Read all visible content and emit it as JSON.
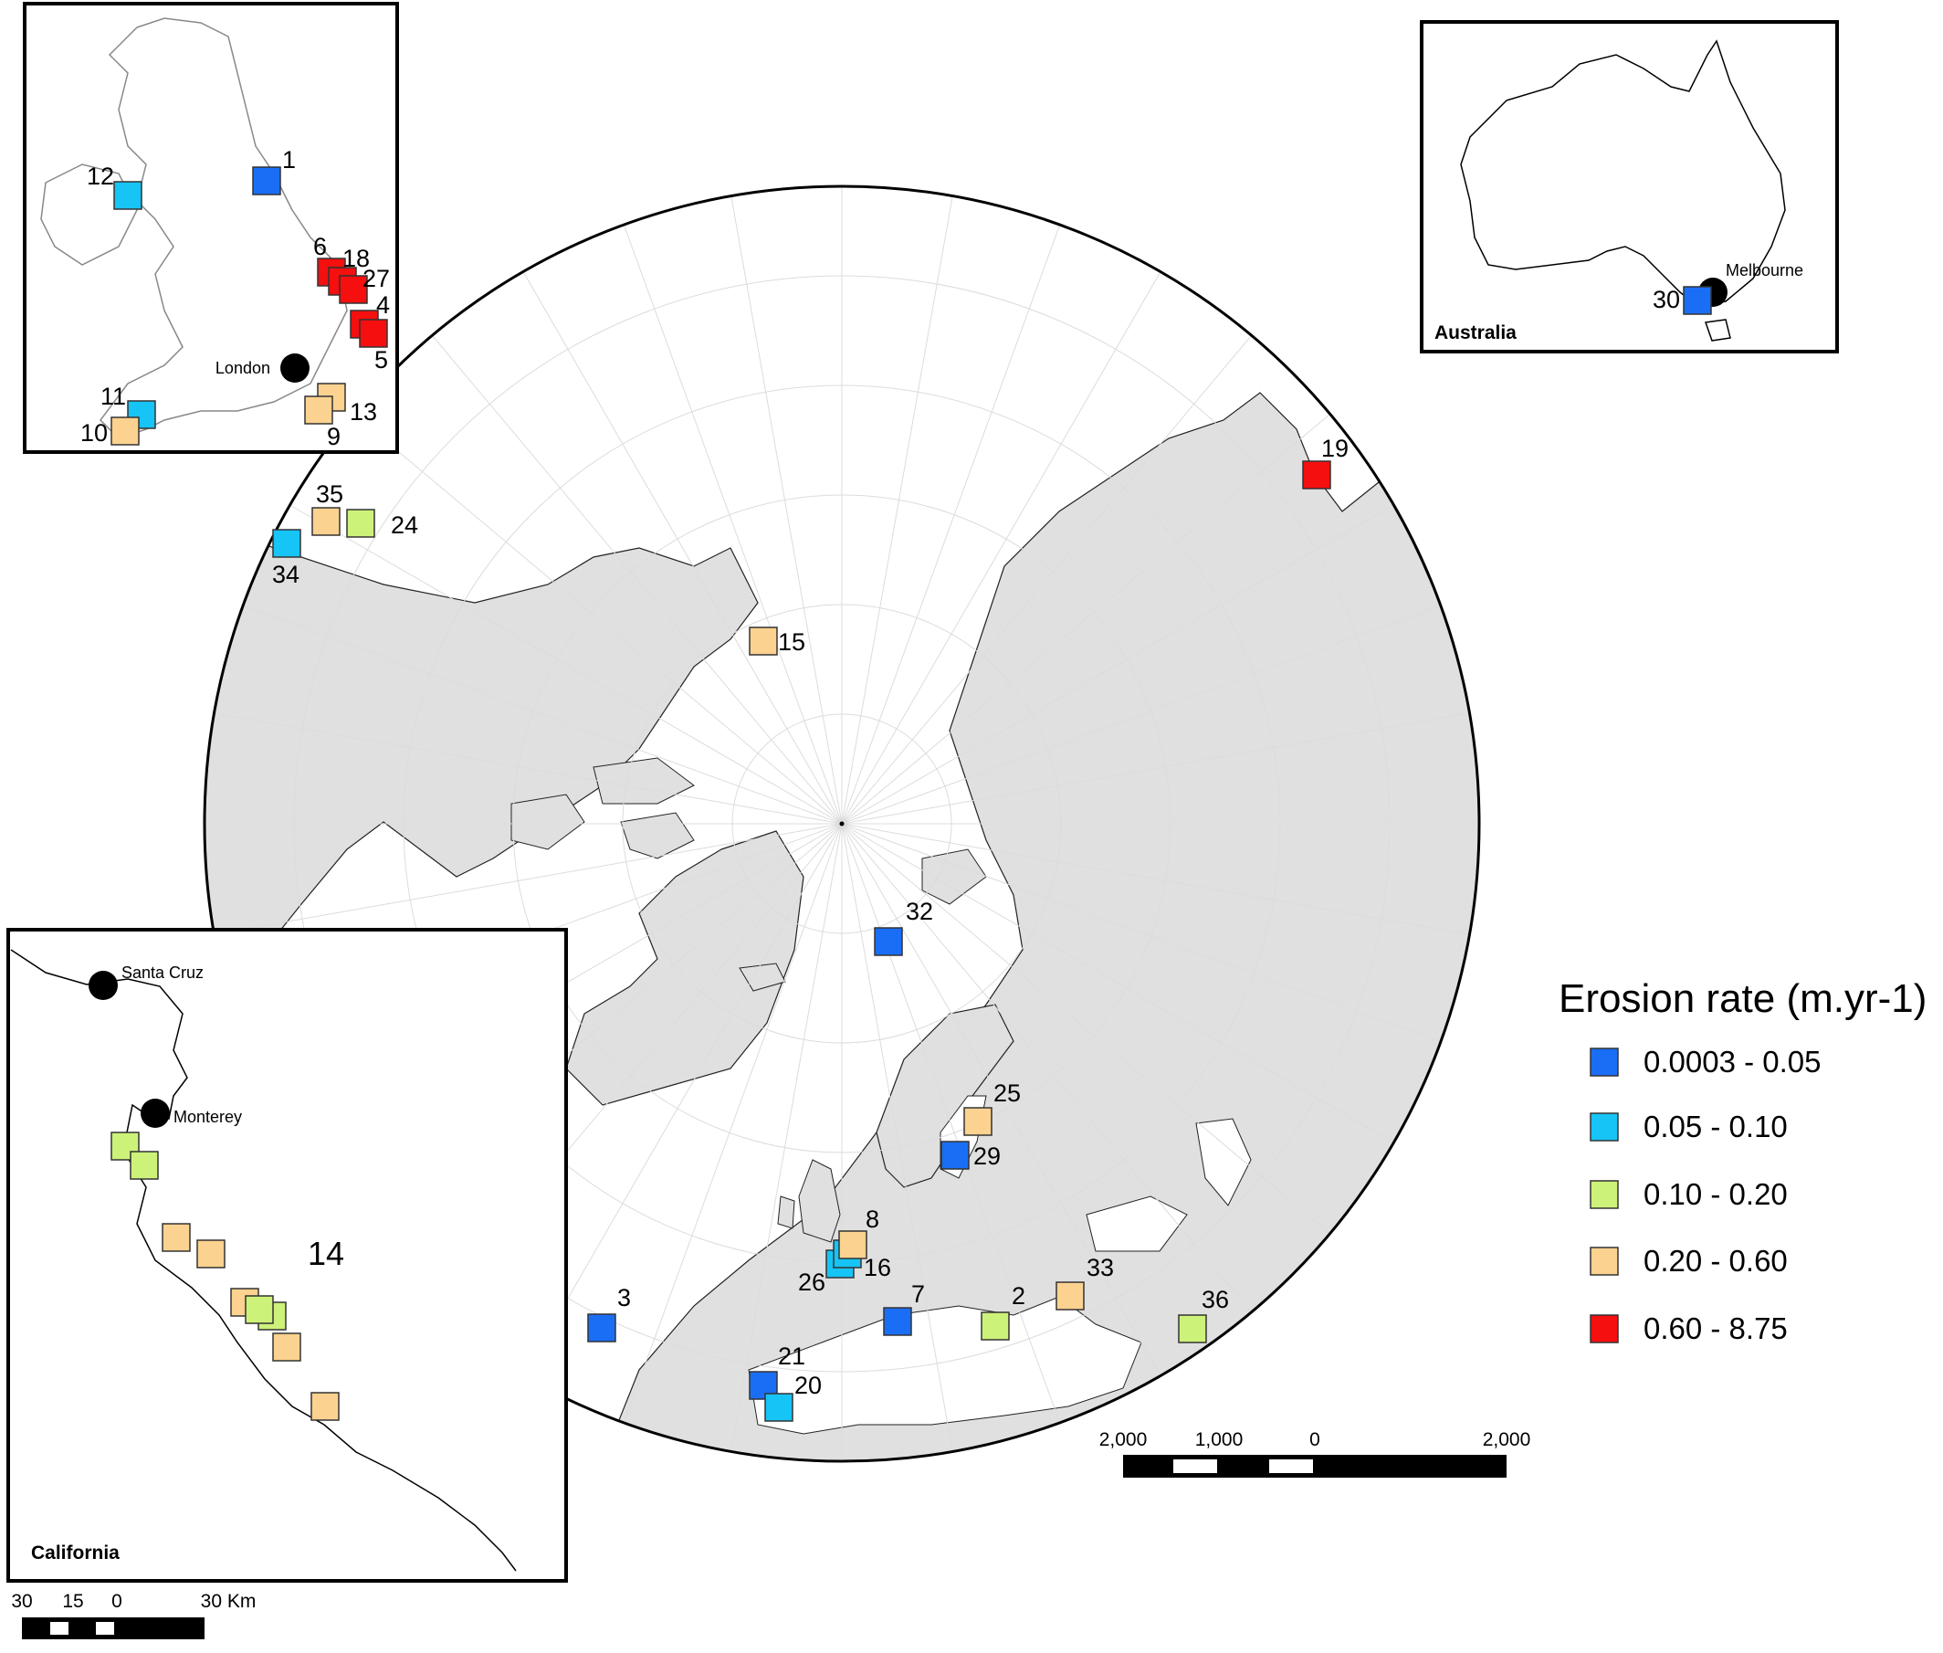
{
  "legend": {
    "title": "Erosion rate (m.yr-1)",
    "classes": [
      {
        "label": "0.0003 - 0.05",
        "color": "#1a6ef5"
      },
      {
        "label": "0.05 - 0.10",
        "color": "#16c4f5"
      },
      {
        "label": "0.10 - 0.20",
        "color": "#cdf27a"
      },
      {
        "label": "0.20 - 0.60",
        "color": "#fbd28f"
      },
      {
        "label": "0.60 - 8.75",
        "color": "#f50f0f"
      }
    ]
  },
  "main_map": {
    "sites": [
      "19",
      "35",
      "24",
      "34",
      "15",
      "32",
      "25",
      "29",
      "8",
      "16",
      "26",
      "3",
      "7",
      "2",
      "33",
      "36",
      "21",
      "20"
    ],
    "scale_labels": [
      "2,000",
      "1,000",
      "0",
      "2,000"
    ]
  },
  "uk_inset": {
    "sites": [
      "1",
      "12",
      "6",
      "18",
      "27",
      "4",
      "5",
      "11",
      "10",
      "13",
      "9"
    ],
    "cities": [
      "London"
    ]
  },
  "australia_inset": {
    "title": "Australia",
    "sites": [
      "30"
    ],
    "cities": [
      "Melbourne"
    ]
  },
  "california_inset": {
    "title": "California",
    "site_label": "14",
    "cities": [
      "Santa Cruz",
      "Monterey"
    ],
    "scale_labels": [
      "30",
      "15",
      "0",
      "30 Km"
    ]
  }
}
